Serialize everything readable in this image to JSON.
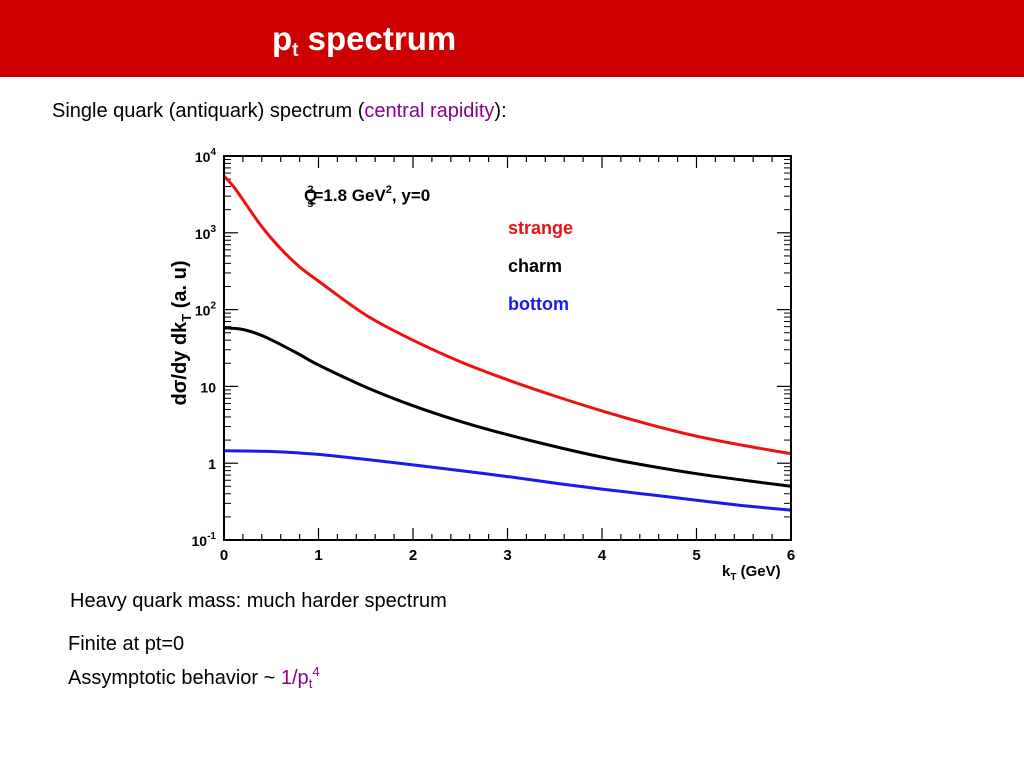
{
  "header": {
    "title_main": "p",
    "title_sub": "t",
    "title_rest": " spectrum",
    "background_color": "#cc0000"
  },
  "intro": {
    "text_before": "Single quark (antiquark) spectrum (",
    "highlight": "central rapidity",
    "text_after": "):"
  },
  "chart_data": {
    "type": "line",
    "annotation_parts": [
      "Q",
      "s",
      "2",
      "=1.8 GeV",
      "2",
      ", y=0"
    ],
    "xlabel_main": "k",
    "xlabel_sub": "T",
    "xlabel_rest": " (GeV)",
    "ylabel": "dσ/dy dk_T (a. u)",
    "ylabel_parts": [
      "dσ/dy dk",
      "T",
      " (a. u)"
    ],
    "xlim": [
      0,
      6
    ],
    "ylim": [
      0.1,
      10000
    ],
    "yscale": "log",
    "x_ticks": [
      0,
      1,
      2,
      3,
      4,
      5,
      6
    ],
    "x_tick_labels": [
      "0",
      "1",
      "2",
      "3",
      "4",
      "5",
      "6"
    ],
    "y_ticks": [
      0.1,
      1,
      10,
      100,
      1000,
      10000
    ],
    "y_tick_labels": [
      {
        "base": "10",
        "exp": "-1"
      },
      {
        "base": "1",
        "exp": ""
      },
      {
        "base": "10",
        "exp": ""
      },
      {
        "base": "10",
        "exp": "2"
      },
      {
        "base": "10",
        "exp": "3"
      },
      {
        "base": "10",
        "exp": "4"
      }
    ],
    "legend_placement": "top-right",
    "series": [
      {
        "name": "strange",
        "color": "#ee1111",
        "x": [
          0,
          0.1,
          0.2,
          0.4,
          0.6,
          0.8,
          1.0,
          1.5,
          2.0,
          2.5,
          3.0,
          3.5,
          4.0,
          4.5,
          5.0,
          5.5,
          6.0
        ],
        "y": [
          5500,
          4000,
          2700,
          1200,
          620,
          360,
          235,
          85,
          40,
          21,
          12.2,
          7.5,
          4.8,
          3.2,
          2.25,
          1.7,
          1.33
        ]
      },
      {
        "name": "charm",
        "color": "#000000",
        "x": [
          0,
          0.2,
          0.4,
          0.6,
          0.8,
          1.0,
          1.5,
          2.0,
          2.5,
          3.0,
          3.5,
          4.0,
          4.5,
          5.0,
          5.5,
          6.0
        ],
        "y": [
          58,
          55,
          46,
          35,
          26,
          19,
          9.8,
          5.6,
          3.5,
          2.35,
          1.65,
          1.2,
          0.92,
          0.73,
          0.6,
          0.5
        ]
      },
      {
        "name": "bottom",
        "color": "#1a1aee",
        "x": [
          0,
          0.5,
          1.0,
          1.5,
          2.0,
          2.5,
          3.0,
          3.5,
          4.0,
          4.5,
          5.0,
          5.5,
          6.0
        ],
        "y": [
          1.45,
          1.42,
          1.3,
          1.12,
          0.95,
          0.8,
          0.67,
          0.55,
          0.46,
          0.39,
          0.33,
          0.28,
          0.245
        ]
      }
    ]
  },
  "notes": {
    "line1": "Heavy quark mass: much harder spectrum",
    "line2": "Finite at pt=0",
    "line3_before": "Assymptotic behavior ~ ",
    "line3_highlight_main": "1/p",
    "line3_highlight_sub": "t",
    "line3_highlight_sup": "4"
  }
}
